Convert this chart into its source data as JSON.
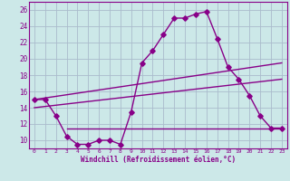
{
  "xlabel": "Windchill (Refroidissement éolien,°C)",
  "background_color": "#cce8e8",
  "line_color": "#880088",
  "grid_color": "#aabbcc",
  "xlim": [
    -0.5,
    23.5
  ],
  "ylim": [
    9.0,
    27.0
  ],
  "xticks": [
    0,
    1,
    2,
    3,
    4,
    5,
    6,
    7,
    8,
    9,
    10,
    11,
    12,
    13,
    14,
    15,
    16,
    17,
    18,
    19,
    20,
    21,
    22,
    23
  ],
  "yticks": [
    10,
    12,
    14,
    16,
    18,
    20,
    22,
    24,
    26
  ],
  "main_x": [
    0,
    1,
    2,
    3,
    4,
    5,
    6,
    7,
    8,
    9,
    10,
    11,
    12,
    13,
    14,
    15,
    16,
    17,
    18,
    19,
    20,
    21,
    22,
    23
  ],
  "main_y": [
    15.0,
    15.0,
    13.0,
    10.5,
    9.5,
    9.5,
    10.0,
    10.0,
    9.5,
    13.5,
    19.5,
    21.0,
    23.0,
    25.0,
    25.0,
    25.5,
    25.8,
    22.5,
    19.0,
    17.5,
    15.5,
    13.0,
    11.5,
    11.5
  ],
  "line1_x": [
    0,
    23
  ],
  "line1_y": [
    15.0,
    19.5
  ],
  "line2_x": [
    0,
    23
  ],
  "line2_y": [
    14.0,
    17.5
  ],
  "hline_x": [
    3,
    23
  ],
  "hline_y": 11.5
}
